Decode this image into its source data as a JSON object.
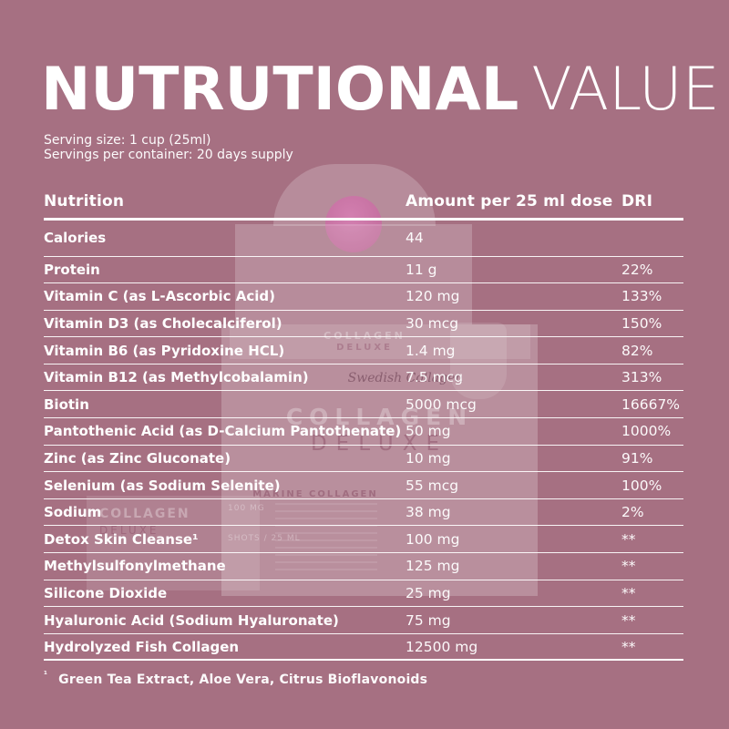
{
  "colors": {
    "background": "#a67082",
    "text_primary": "#ffffff",
    "photo_pink_ball": "#c771a5"
  },
  "header": {
    "title_bold": "NUTRUTIONAL",
    "title_light": "VALUE",
    "serving_size": "Serving size: 1 cup (25ml)",
    "servings_per_container": "Servings per container: 20 days supply"
  },
  "table": {
    "columns": [
      {
        "label": "Nutrition"
      },
      {
        "label": "Amount per 25 ml dose"
      },
      {
        "label": "DRI"
      }
    ],
    "rows": [
      {
        "nutrition": "Calories",
        "amount": "44",
        "dri": ""
      },
      {
        "nutrition": "Protein",
        "amount": "11 g",
        "dri": "22%"
      },
      {
        "nutrition": "Vitamin C (as L-Ascorbic Acid)",
        "amount": "120 mg",
        "dri": "133%"
      },
      {
        "nutrition": "Vitamin D3 (as Cholecalciferol)",
        "amount": "30 mcg",
        "dri": "150%"
      },
      {
        "nutrition": "Vitamin B6 (as Pyridoxine HCL)",
        "amount": "1.4 mg",
        "dri": "82%"
      },
      {
        "nutrition": "Vitamin B12 (as Methylcobalamin)",
        "amount": "7.5 mcg",
        "dri": "313%"
      },
      {
        "nutrition": "Biotin",
        "amount": "5000 mcg",
        "dri": "16667%"
      },
      {
        "nutrition": "Pantothenic Acid (as D-Calcium Pantothenate)",
        "amount": "50 mg",
        "dri": "1000%"
      },
      {
        "nutrition": "Zinc (as Zinc Gluconate)",
        "amount": "10 mg",
        "dri": "91%"
      },
      {
        "nutrition": "Selenium (as Sodium Selenite)",
        "amount": "55 mcg",
        "dri": "100%"
      },
      {
        "nutrition": "Sodium",
        "amount": "38 mg",
        "dri": "2%"
      },
      {
        "nutrition": "Detox Skin Cleanse¹",
        "amount": "100 mg",
        "dri": "**"
      },
      {
        "nutrition": "Methylsulfonylmethane",
        "amount": "125 mg",
        "dri": "**"
      },
      {
        "nutrition": "Silicone Dioxide",
        "amount": "25 mg",
        "dri": "**"
      },
      {
        "nutrition": "Hyaluronic Acid (Sodium Hyaluronate)",
        "amount": "75 mg",
        "dri": "**"
      },
      {
        "nutrition": "Hydrolyzed Fish Collagen",
        "amount": "12500 mg",
        "dri": "**"
      }
    ]
  },
  "footnote": {
    "marker": "¹",
    "text": "Green Tea Extract, Aloe Vera, Citrus Bioflavonoids"
  },
  "background_product": {
    "brand": "Swedish Collagen",
    "name_line1": "COLLAGEN",
    "name_line2": "DELUXE",
    "subtitle": "MARINE COLLAGEN",
    "dose": "100 MG",
    "format": "SHOTS / 25 ML"
  }
}
